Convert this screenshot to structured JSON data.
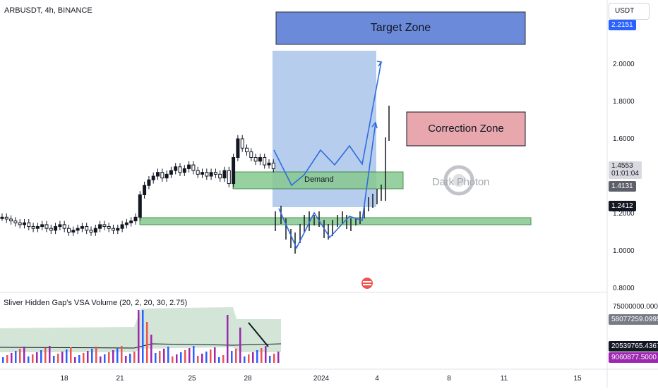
{
  "symbol": "ARBUSDT, 4h, BINANCE",
  "currency_button": "USDT",
  "price_axis": [
    "2.0000",
    "1.8000",
    "1.6000",
    "1.2000",
    "1.0000",
    "0.8000"
  ],
  "badges": {
    "target_price": {
      "text": "2.2151",
      "color": "#2962ff"
    },
    "last_price": {
      "text": "1.4553",
      "sub": "01:01:04",
      "color": "#b2b5be"
    },
    "level_1": {
      "text": "1.4131",
      "color": "#5d606b"
    },
    "level_2": {
      "text": "1.2412",
      "color": "#131722"
    },
    "vol_1": {
      "text": "58077259.0995",
      "color": "#787b86"
    },
    "vol_2": {
      "text": "20539765.4367",
      "color": "#131722"
    },
    "vol_3": {
      "text": "9060877.5000",
      "color": "#9c27b0"
    }
  },
  "volume_axis": [
    "75000000.0000"
  ],
  "time_axis": [
    "18",
    "21",
    "25",
    "28",
    "2024",
    "4",
    "8",
    "11",
    "15"
  ],
  "annotations": {
    "target_zone": "Target Zone",
    "correction_zone": "Correction Zone",
    "demand": "Demand"
  },
  "watermark": "Dark Photon",
  "indicator": {
    "title": "Sliver Hidden Gap's VSA Volume (20, 2, 20, 30, 2.75)"
  },
  "colors": {
    "up": "#26a69a",
    "down": "#ef5350",
    "zone_blue": "#5b7fd6",
    "zone_red": "#e8a6ad",
    "zone_green": "#86c98f",
    "projection": "#2f6ce0",
    "vol_band": "#c7dfcc",
    "vol_blue": "#2962ff",
    "vol_red": "#ef5350",
    "vol_purple": "#9c27b0"
  },
  "chart_data": {
    "type": "candlestick",
    "price_range": [
      0.8,
      2.2151
    ],
    "last_price": 1.4553,
    "levels": [
      1.4131,
      1.2412
    ],
    "candles_close": [
      1.18,
      1.17,
      1.16,
      1.15,
      1.14,
      1.15,
      1.13,
      1.12,
      1.13,
      1.14,
      1.12,
      1.11,
      1.13,
      1.14,
      1.12,
      1.1,
      1.11,
      1.12,
      1.13,
      1.11,
      1.1,
      1.12,
      1.14,
      1.13,
      1.12,
      1.11,
      1.12,
      1.14,
      1.15,
      1.16,
      1.18,
      1.3,
      1.35,
      1.38,
      1.4,
      1.42,
      1.39,
      1.41,
      1.43,
      1.45,
      1.42,
      1.44,
      1.46,
      1.43,
      1.41,
      1.42,
      1.4,
      1.42,
      1.41,
      1.39,
      1.43,
      1.36,
      1.5,
      1.6,
      1.55,
      1.53,
      1.5,
      1.48,
      1.5,
      1.46,
      1.47,
      1.44
    ],
    "projection_path_1": [
      [
        1.5,
        1.4
      ],
      [
        1.36,
        1.52
      ],
      [
        1.4,
        1.52
      ],
      [
        1.42,
        1.99
      ]
    ],
    "projection_path_2": [
      [
        1.21,
        1.15
      ],
      [
        0.99,
        1.14
      ],
      [
        1.07,
        1.22
      ],
      [
        1.2,
        1.7
      ]
    ]
  }
}
